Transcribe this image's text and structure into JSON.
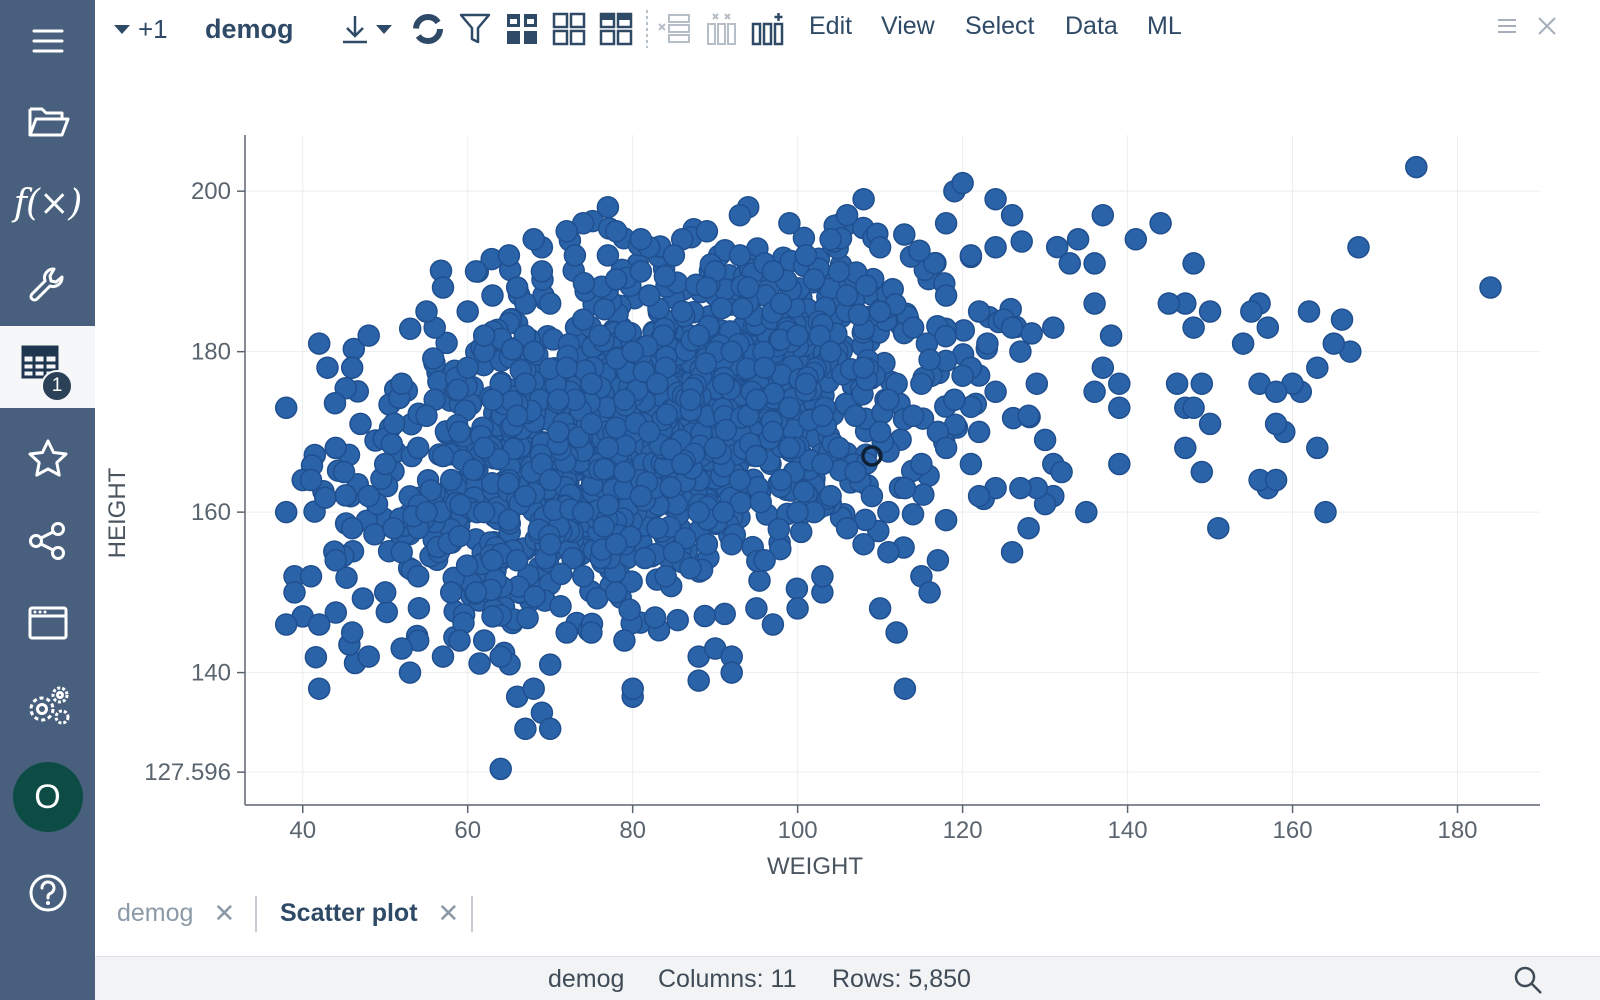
{
  "sidebar": {
    "items": [
      {
        "name": "menu-icon"
      },
      {
        "name": "folder-open-icon"
      },
      {
        "name": "function-icon",
        "label": "f(×)"
      },
      {
        "name": "wrench-icon"
      },
      {
        "name": "table-icon",
        "badge": "1"
      },
      {
        "name": "star-icon"
      },
      {
        "name": "share-icon"
      },
      {
        "name": "window-icon"
      },
      {
        "name": "settings-icon"
      },
      {
        "name": "avatar",
        "initial": "O"
      },
      {
        "name": "help-icon"
      }
    ]
  },
  "toolbar": {
    "extra_count": "+1",
    "table_name": "demog",
    "menus": [
      "Edit",
      "View",
      "Select",
      "Data",
      "ML"
    ]
  },
  "chart_data": {
    "type": "scatter",
    "xlabel": "WEIGHT",
    "ylabel": "HEIGHT",
    "xlim": [
      33,
      190
    ],
    "ylim": [
      123.5,
      207
    ],
    "x_ticks": [
      40,
      60,
      80,
      100,
      120,
      140,
      160,
      180
    ],
    "y_ticks": [
      127.596,
      140,
      160,
      180,
      200
    ],
    "y_tick_labels": [
      "127.596",
      "140",
      "160",
      "180",
      "200"
    ],
    "x_min": 40,
    "x_max": 180,
    "y_min": 127.596,
    "marker_color": "#2b63a8",
    "marker_edge": "#1f4f8f",
    "highlighted_point": {
      "x": 109,
      "y": 167
    },
    "grid": true,
    "total_rows": 5850,
    "points": [
      [
        175,
        203
      ],
      [
        184,
        188
      ],
      [
        168,
        193
      ],
      [
        166,
        184
      ],
      [
        167,
        180
      ],
      [
        165,
        181
      ],
      [
        162,
        185
      ],
      [
        163,
        178
      ],
      [
        161,
        175
      ],
      [
        160,
        176
      ],
      [
        157,
        183
      ],
      [
        156,
        186
      ],
      [
        155,
        185
      ],
      [
        154,
        181
      ],
      [
        156,
        176
      ],
      [
        158,
        175
      ],
      [
        159,
        170
      ],
      [
        158,
        171
      ],
      [
        163,
        168
      ],
      [
        157,
        163
      ],
      [
        156,
        164
      ],
      [
        158,
        164
      ],
      [
        164,
        160
      ],
      [
        150,
        171
      ],
      [
        147,
        173
      ],
      [
        148,
        173
      ],
      [
        149,
        165
      ],
      [
        151,
        158
      ],
      [
        147,
        168
      ],
      [
        149,
        176
      ],
      [
        146,
        176
      ],
      [
        147,
        186
      ],
      [
        150,
        185
      ],
      [
        148,
        183
      ],
      [
        148,
        191
      ],
      [
        145,
        186
      ],
      [
        144,
        196
      ],
      [
        141,
        194
      ],
      [
        137,
        197
      ],
      [
        134,
        194
      ],
      [
        133,
        191
      ],
      [
        136,
        191
      ],
      [
        137,
        178
      ],
      [
        139,
        173
      ],
      [
        138,
        182
      ],
      [
        139,
        166
      ],
      [
        135,
        160
      ],
      [
        136,
        186
      ],
      [
        139,
        176
      ],
      [
        136,
        175
      ],
      [
        131,
        183
      ],
      [
        130,
        169
      ],
      [
        131,
        166
      ],
      [
        131,
        162
      ],
      [
        130,
        161
      ],
      [
        132,
        165
      ],
      [
        129,
        163
      ],
      [
        128,
        158
      ],
      [
        127,
        163
      ],
      [
        126,
        155
      ],
      [
        124,
        163
      ],
      [
        122,
        162
      ],
      [
        121,
        166
      ],
      [
        118,
        159
      ],
      [
        117,
        154
      ],
      [
        115,
        152
      ],
      [
        116,
        150
      ],
      [
        111,
        155
      ],
      [
        110,
        148
      ],
      [
        113,
        138
      ],
      [
        108,
        199
      ],
      [
        106,
        197
      ],
      [
        119,
        200
      ],
      [
        120,
        201
      ],
      [
        124,
        199
      ],
      [
        126,
        197
      ],
      [
        124,
        193
      ],
      [
        121,
        192
      ],
      [
        118,
        196
      ],
      [
        110,
        193
      ],
      [
        104,
        194
      ],
      [
        99,
        196
      ],
      [
        96,
        191
      ],
      [
        94,
        198
      ],
      [
        93,
        197
      ],
      [
        89,
        195
      ],
      [
        86,
        194
      ],
      [
        81,
        190
      ],
      [
        82,
        193
      ],
      [
        77,
        198
      ],
      [
        78,
        195
      ],
      [
        74,
        196
      ],
      [
        72,
        195
      ],
      [
        69,
        193
      ],
      [
        68,
        194
      ],
      [
        67,
        186
      ],
      [
        63,
        187
      ],
      [
        62,
        180
      ],
      [
        56,
        183
      ],
      [
        55,
        185
      ],
      [
        48,
        182
      ],
      [
        46,
        178
      ],
      [
        42,
        181
      ],
      [
        43,
        178
      ],
      [
        38,
        173
      ],
      [
        40,
        164
      ],
      [
        41,
        164
      ],
      [
        38,
        160
      ],
      [
        39,
        152
      ],
      [
        39,
        150
      ],
      [
        40,
        147
      ],
      [
        41,
        152
      ],
      [
        38,
        146
      ],
      [
        42,
        146
      ],
      [
        42,
        138
      ],
      [
        46,
        145
      ],
      [
        48,
        142
      ],
      [
        53,
        140
      ],
      [
        54,
        144
      ],
      [
        52,
        143
      ],
      [
        57,
        142
      ],
      [
        59,
        144
      ],
      [
        62,
        144
      ],
      [
        63,
        147
      ],
      [
        64,
        142
      ],
      [
        66,
        137
      ],
      [
        68,
        138
      ],
      [
        69,
        135
      ],
      [
        67,
        133
      ],
      [
        70,
        133
      ],
      [
        70,
        141
      ],
      [
        72,
        145
      ],
      [
        75,
        145
      ],
      [
        79,
        144
      ],
      [
        80,
        137
      ],
      [
        80,
        138
      ],
      [
        88,
        139
      ],
      [
        88,
        142
      ],
      [
        90,
        143
      ],
      [
        92,
        142
      ],
      [
        92,
        140
      ],
      [
        64,
        128
      ],
      [
        95,
        148
      ],
      [
        97,
        146
      ],
      [
        100,
        148
      ],
      [
        103,
        150
      ],
      [
        103,
        152
      ],
      [
        112,
        145
      ],
      [
        44,
        168
      ],
      [
        45,
        165
      ],
      [
        47,
        171
      ],
      [
        49,
        161
      ],
      [
        51,
        158
      ],
      [
        52,
        155
      ],
      [
        55,
        160
      ],
      [
        57,
        167
      ],
      [
        59,
        157
      ],
      [
        61,
        150
      ],
      [
        63,
        154
      ],
      [
        65,
        159
      ],
      [
        67,
        162
      ],
      [
        69,
        166
      ],
      [
        71,
        170
      ],
      [
        73,
        174
      ],
      [
        75,
        171
      ],
      [
        77,
        168
      ],
      [
        79,
        165
      ],
      [
        81,
        162
      ],
      [
        83,
        158
      ],
      [
        85,
        155
      ],
      [
        87,
        153
      ],
      [
        89,
        156
      ],
      [
        91,
        160
      ],
      [
        93,
        164
      ],
      [
        95,
        167
      ],
      [
        97,
        170
      ],
      [
        99,
        173
      ],
      [
        101,
        176
      ],
      [
        103,
        172
      ],
      [
        105,
        168
      ],
      [
        107,
        165
      ],
      [
        109,
        162
      ],
      [
        111,
        160
      ],
      [
        113,
        163
      ],
      [
        115,
        166
      ],
      [
        117,
        170
      ],
      [
        119,
        174
      ],
      [
        121,
        178
      ],
      [
        123,
        181
      ],
      [
        125,
        184
      ],
      [
        127,
        180
      ],
      [
        129,
        176
      ],
      [
        60,
        185
      ],
      [
        62,
        182
      ],
      [
        66,
        188
      ],
      [
        70,
        186
      ],
      [
        74,
        184
      ],
      [
        78,
        189
      ],
      [
        82,
        187
      ],
      [
        86,
        185
      ],
      [
        90,
        190
      ],
      [
        94,
        188
      ],
      [
        98,
        186
      ],
      [
        102,
        189
      ],
      [
        106,
        187
      ],
      [
        110,
        185
      ],
      [
        114,
        183
      ],
      [
        118,
        187
      ],
      [
        122,
        185
      ],
      [
        126,
        183
      ],
      [
        52,
        176
      ],
      [
        56,
        174
      ],
      [
        60,
        178
      ],
      [
        64,
        176
      ],
      [
        68,
        180
      ],
      [
        72,
        178
      ],
      [
        76,
        182
      ],
      [
        80,
        180
      ],
      [
        84,
        178
      ],
      [
        88,
        182
      ],
      [
        92,
        180
      ],
      [
        96,
        178
      ],
      [
        100,
        182
      ],
      [
        104,
        180
      ],
      [
        108,
        178
      ],
      [
        112,
        176
      ],
      [
        116,
        179
      ],
      [
        120,
        177
      ],
      [
        124,
        175
      ],
      [
        128,
        172
      ],
      [
        48,
        162
      ],
      [
        50,
        166
      ],
      [
        54,
        168
      ],
      [
        58,
        164
      ],
      [
        62,
        168
      ],
      [
        66,
        172
      ],
      [
        70,
        164
      ],
      [
        74,
        160
      ],
      [
        78,
        156
      ],
      [
        82,
        170
      ],
      [
        86,
        166
      ],
      [
        90,
        168
      ],
      [
        94,
        172
      ],
      [
        98,
        164
      ],
      [
        102,
        160
      ],
      [
        106,
        158
      ],
      [
        110,
        170
      ],
      [
        114,
        172
      ],
      [
        118,
        168
      ],
      [
        122,
        170
      ],
      [
        44,
        154
      ],
      [
        46,
        158
      ],
      [
        50,
        150
      ],
      [
        54,
        152
      ],
      [
        58,
        150
      ],
      [
        62,
        160
      ],
      [
        66,
        154
      ],
      [
        70,
        156
      ],
      [
        74,
        152
      ],
      [
        78,
        150
      ],
      [
        84,
        152
      ],
      [
        88,
        160
      ],
      [
        92,
        156
      ],
      [
        96,
        154
      ],
      [
        100,
        160
      ],
      [
        104,
        162
      ],
      [
        108,
        156
      ],
      [
        55,
        172
      ],
      [
        59,
        170
      ],
      [
        63,
        174
      ],
      [
        67,
        176
      ],
      [
        71,
        174
      ],
      [
        75,
        176
      ],
      [
        79,
        174
      ],
      [
        83,
        176
      ],
      [
        87,
        174
      ],
      [
        91,
        176
      ],
      [
        95,
        174
      ],
      [
        99,
        168
      ],
      [
        103,
        166
      ],
      [
        107,
        172
      ],
      [
        111,
        174
      ],
      [
        115,
        176
      ],
      [
        57,
        188
      ],
      [
        61,
        190
      ],
      [
        65,
        192
      ],
      [
        69,
        190
      ],
      [
        73,
        192
      ],
      [
        77,
        192
      ],
      [
        81,
        194
      ],
      [
        85,
        192
      ],
      [
        89,
        188
      ],
      [
        93,
        192
      ],
      [
        97,
        190
      ],
      [
        101,
        192
      ],
      [
        105,
        190
      ]
    ]
  },
  "tabs": [
    {
      "label": "demog",
      "active": false
    },
    {
      "label": "Scatter plot",
      "active": true
    }
  ],
  "status": {
    "table": "demog",
    "columns": "Columns: 11",
    "rows": "Rows: 5,850"
  }
}
